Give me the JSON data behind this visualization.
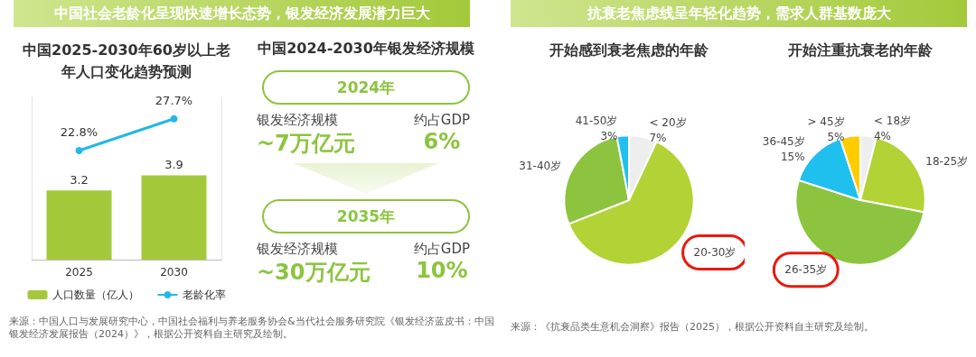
{
  "chart_data": [
    {
      "type": "bar",
      "subtitle": "中国社会老龄化呈现快速增长态势，银发经济发展潜力巨大",
      "title": "中国2025-2030年60岁以上老年人口变化趋势预测",
      "categories": [
        "2025",
        "2030"
      ],
      "series": [
        {
          "type": "bar",
          "name": "人口数量（亿人）",
          "color": "#a3c93a",
          "values": [
            3.2,
            3.9
          ],
          "value_labels": [
            "3.2",
            "3.9"
          ]
        },
        {
          "type": "line",
          "name": "老龄化率",
          "color": "#22b8e8",
          "axis": "y2",
          "values": [
            22.8,
            27.7
          ],
          "value_labels": [
            "22.8%",
            "27.7%"
          ]
        }
      ],
      "marker": "circle",
      "legend": "bottom",
      "ylim": [
        0,
        7.5
      ],
      "y2lim": [
        6,
        31
      ],
      "tick_labels": false,
      "annotations": [
        "来源：中国人口与发展研究中心，中国社会福利与养老服务协会&当代社会服务研究院《银发经济蓝皮书：中国银发经济发展报告（2024）》，根据公开资料自主研究及绘制。"
      ]
    },
    {
      "type": "other",
      "title": "中国2024-2030年银发经济规模",
      "annotations": [
        "2024年",
        "银发经济规模",
        "~7万亿元",
        "约占GDP",
        "6%",
        "2035年",
        "银发经济规模",
        "~30万亿元",
        "约占GDP",
        "10%"
      ]
    },
    {
      "type": "pie",
      "subtitle": "抗衰老焦虑线呈年轻化趋势，需求人群基数庞大",
      "title": "开始感到衰老焦虑的年龄",
      "categories": [
        "< 20岁",
        "20-30岁",
        "31-40岁",
        "41-50岁"
      ],
      "values": [
        7,
        62,
        28,
        3
      ],
      "value_labels": [
        "7%",
        null,
        null,
        "3%"
      ],
      "colors": [
        "#eeeeee",
        "#b3d235",
        "#8cc43f",
        "#1fc0ee"
      ],
      "annotations": [
        "来源：《抗衰品类生意机会洞察》报告（2025），根据公开资料自主研究及绘制。"
      ]
    },
    {
      "type": "pie",
      "title": "开始注重抗衰老的年龄",
      "categories": [
        "< 18岁",
        "18-25岁",
        "26-35岁",
        "36-45岁",
        "> 45岁"
      ],
      "values": [
        4,
        24,
        52,
        15,
        5
      ],
      "value_labels": [
        "4%",
        null,
        null,
        "15%",
        "5%"
      ],
      "colors": [
        "#eeeeee",
        "#b3d235",
        "#8cc43f",
        "#1fc0ee",
        "#ffcc00"
      ]
    }
  ]
}
